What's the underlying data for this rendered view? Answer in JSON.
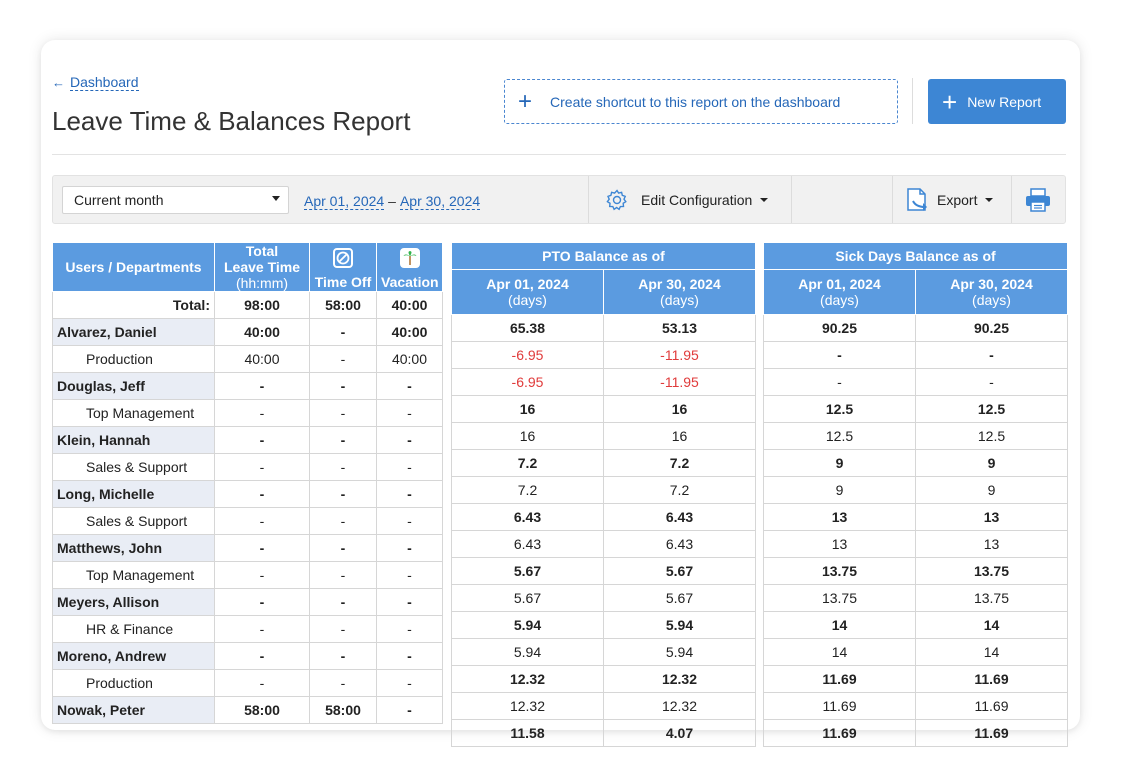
{
  "header": {
    "back_label": "Dashboard",
    "title": "Leave Time & Balances Report",
    "shortcut_label": "Create shortcut to this report on the dashboard",
    "new_report_label": "New Report"
  },
  "toolbar": {
    "period_selected": "Current month",
    "date_from": "Apr 01, 2024",
    "date_sep": "–",
    "date_to": "Apr 30, 2024",
    "edit_config_label": "Edit Configuration",
    "export_label": "Export"
  },
  "table_left": {
    "col_users": "Users / Departments",
    "col_total_line1": "Total",
    "col_total_line2": "Leave Time",
    "col_total_line3": "(hh:mm)",
    "col_timeoff": "Time Off",
    "col_vacation": "Vacation"
  },
  "table_pto": {
    "group_header": "PTO Balance as of",
    "col1_date": "Apr 01, 2024",
    "col1_unit": "(days)",
    "col2_date": "Apr 30, 2024",
    "col2_unit": "(days)"
  },
  "table_sick": {
    "group_header": "Sick Days Balance as of",
    "col1_date": "Apr 01, 2024",
    "col1_unit": "(days)",
    "col2_date": "Apr 30, 2024",
    "col2_unit": "(days)"
  },
  "total_row": {
    "label": "Total:",
    "total": "98:00",
    "timeoff": "58:00",
    "vacation": "40:00",
    "pto_start": "65.38",
    "pto_end": "53.13",
    "sick_start": "90.25",
    "sick_end": "90.25"
  },
  "rows": [
    {
      "name": "Alvarez, Daniel",
      "total": "40:00",
      "timeoff": "-",
      "vacation": "40:00",
      "pto_start": "-6.95",
      "pto_end": "-11.95",
      "sick_start": "-",
      "sick_end": "-"
    },
    {
      "name": "Production",
      "total": "40:00",
      "timeoff": "-",
      "vacation": "40:00",
      "pto_start": "-6.95",
      "pto_end": "-11.95",
      "sick_start": "-",
      "sick_end": "-"
    },
    {
      "name": "Douglas, Jeff",
      "total": "-",
      "timeoff": "-",
      "vacation": "-",
      "pto_start": "16",
      "pto_end": "16",
      "sick_start": "12.5",
      "sick_end": "12.5"
    },
    {
      "name": "Top Management",
      "total": "-",
      "timeoff": "-",
      "vacation": "-",
      "pto_start": "16",
      "pto_end": "16",
      "sick_start": "12.5",
      "sick_end": "12.5"
    },
    {
      "name": "Klein, Hannah",
      "total": "-",
      "timeoff": "-",
      "vacation": "-",
      "pto_start": "7.2",
      "pto_end": "7.2",
      "sick_start": "9",
      "sick_end": "9"
    },
    {
      "name": "Sales & Support",
      "total": "-",
      "timeoff": "-",
      "vacation": "-",
      "pto_start": "7.2",
      "pto_end": "7.2",
      "sick_start": "9",
      "sick_end": "9"
    },
    {
      "name": "Long, Michelle",
      "total": "-",
      "timeoff": "-",
      "vacation": "-",
      "pto_start": "6.43",
      "pto_end": "6.43",
      "sick_start": "13",
      "sick_end": "13"
    },
    {
      "name": "Sales & Support",
      "total": "-",
      "timeoff": "-",
      "vacation": "-",
      "pto_start": "6.43",
      "pto_end": "6.43",
      "sick_start": "13",
      "sick_end": "13"
    },
    {
      "name": "Matthews, John",
      "total": "-",
      "timeoff": "-",
      "vacation": "-",
      "pto_start": "5.67",
      "pto_end": "5.67",
      "sick_start": "13.75",
      "sick_end": "13.75"
    },
    {
      "name": "Top Management",
      "total": "-",
      "timeoff": "-",
      "vacation": "-",
      "pto_start": "5.67",
      "pto_end": "5.67",
      "sick_start": "13.75",
      "sick_end": "13.75"
    },
    {
      "name": "Meyers, Allison",
      "total": "-",
      "timeoff": "-",
      "vacation": "-",
      "pto_start": "5.94",
      "pto_end": "5.94",
      "sick_start": "14",
      "sick_end": "14"
    },
    {
      "name": "HR & Finance",
      "total": "-",
      "timeoff": "-",
      "vacation": "-",
      "pto_start": "5.94",
      "pto_end": "5.94",
      "sick_start": "14",
      "sick_end": "14"
    },
    {
      "name": "Moreno, Andrew",
      "total": "-",
      "timeoff": "-",
      "vacation": "-",
      "pto_start": "12.32",
      "pto_end": "12.32",
      "sick_start": "11.69",
      "sick_end": "11.69"
    },
    {
      "name": "Production",
      "total": "-",
      "timeoff": "-",
      "vacation": "-",
      "pto_start": "12.32",
      "pto_end": "12.32",
      "sick_start": "11.69",
      "sick_end": "11.69"
    },
    {
      "name": "Nowak, Peter",
      "total": "58:00",
      "timeoff": "58:00",
      "vacation": "-",
      "pto_start": "11.58",
      "pto_end": "4.07",
      "sick_start": "11.69",
      "sick_end": "11.69"
    }
  ],
  "colors": {
    "accent": "#3d86d4",
    "header_bg": "#5b9be0",
    "negative": "#e03b3b",
    "name_cell_bg": "#e9edf5",
    "vacation_icon": "#2fb34a"
  },
  "icons": {
    "back": "arrow-left-icon",
    "shortcut": "plus-icon",
    "new_report": "plus-icon",
    "edit_config": "gear-icon",
    "export": "export-icon",
    "print": "printer-icon",
    "timeoff": "prohibited-icon",
    "vacation": "palm-tree-icon"
  }
}
